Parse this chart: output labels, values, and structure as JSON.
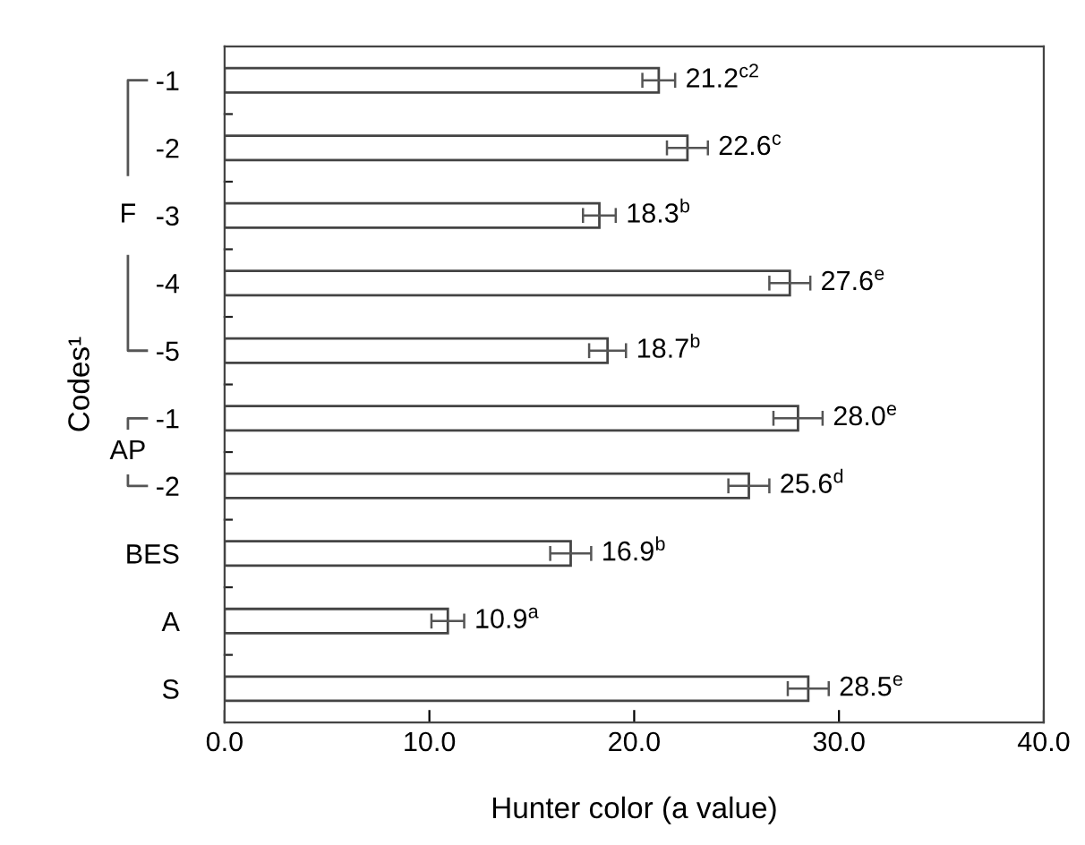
{
  "chart_data": {
    "type": "bar",
    "orientation": "horizontal",
    "xlabel": "Hunter color (a value)",
    "ylabel": "Codes¹",
    "categories": [
      "-1",
      "-2",
      "-3",
      "-4",
      "-5",
      "-1",
      "-2",
      "BES",
      "A",
      "S"
    ],
    "values": [
      21.2,
      22.6,
      18.3,
      27.6,
      18.7,
      28.0,
      25.6,
      16.9,
      10.9,
      28.5
    ],
    "errors": [
      0.8,
      1.0,
      0.8,
      1.0,
      0.9,
      1.2,
      1.0,
      1.0,
      0.8,
      1.0
    ],
    "value_labels": [
      "21.2$^{c2}$",
      "22.6$^{c}$",
      "18.3$^{b}$",
      "27.6$^{e}$",
      "18.7$^{b}$",
      "28.0$^{e}$",
      "25.6$^{d}$",
      "16.9$^{b}$",
      "10.9$^{a}$",
      "28.5$^{e}$"
    ],
    "color": "#ffffff",
    "xlim": [
      0,
      40
    ],
    "xticks": [
      {
        "value": 0,
        "label": "0.0"
      },
      {
        "value": 10,
        "label": "10.0"
      },
      {
        "value": 20,
        "label": "20.0"
      },
      {
        "value": 30,
        "label": "30.0"
      },
      {
        "value": 40,
        "label": "40.0"
      }
    ],
    "annotations": [
      "F",
      "AP"
    ],
    "grid": false,
    "legend": false
  }
}
